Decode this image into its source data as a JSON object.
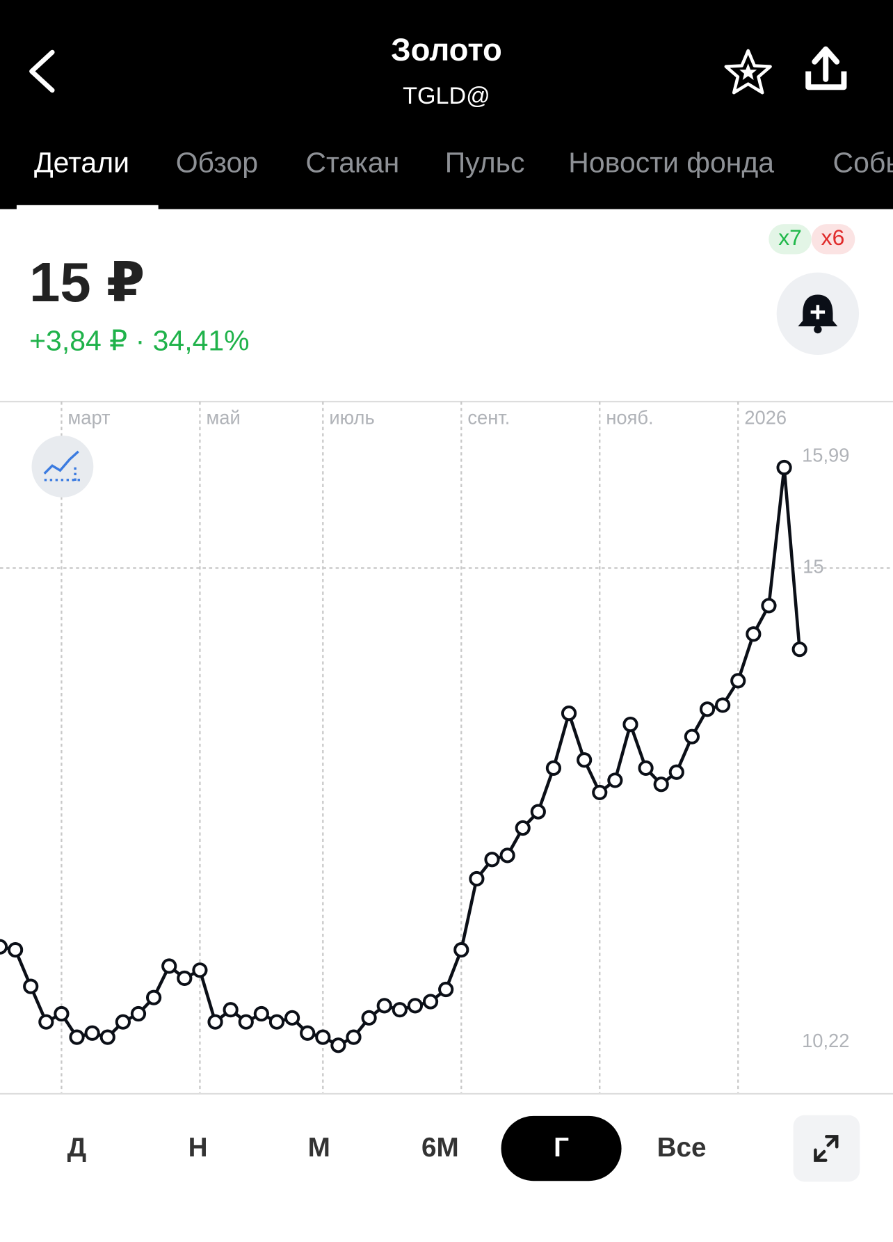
{
  "header": {
    "title": "Золото",
    "subtitle": "TGLD@"
  },
  "tabs": [
    "Детали",
    "Обзор",
    "Стакан",
    "Пульс",
    "Новости фонда",
    "События"
  ],
  "price": {
    "value": "15 ₽",
    "change": "+3,84 ₽ · 34,41%"
  },
  "badges": [
    "x7",
    "x6"
  ],
  "periods": [
    "Д",
    "Н",
    "М",
    "6М",
    "Г",
    "Все"
  ],
  "chart_data": {
    "type": "line",
    "categories": [
      null,
      null,
      null,
      null,
      "март",
      null,
      null,
      null,
      null,
      null,
      null,
      null,
      null,
      "май",
      null,
      null,
      null,
      null,
      null,
      null,
      null,
      "июль",
      null,
      null,
      null,
      null,
      null,
      null,
      null,
      null,
      "сент.",
      null,
      null,
      null,
      null,
      null,
      null,
      null,
      null,
      "нояб.",
      null,
      null,
      null,
      null,
      null,
      null,
      null,
      null,
      "2026",
      null,
      null,
      null,
      null
    ],
    "series": [
      {
        "color": "#0b0f17",
        "values": [
          11.27,
          11.24,
          10.88,
          10.53,
          10.61,
          10.38,
          10.42,
          10.38,
          10.53,
          10.61,
          10.77,
          11.08,
          10.96,
          11.04,
          10.53,
          10.65,
          10.53,
          10.61,
          10.53,
          10.57,
          10.42,
          10.38,
          10.3,
          10.38,
          10.57,
          10.69,
          10.65,
          10.69,
          10.73,
          10.85,
          11.24,
          11.94,
          12.13,
          12.17,
          12.44,
          12.6,
          13.03,
          13.57,
          13.11,
          12.79,
          12.91,
          13.46,
          13.03,
          12.87,
          12.99,
          13.34,
          13.61,
          13.65,
          13.89,
          14.35,
          14.63,
          15.99,
          14.2
        ]
      }
    ],
    "ylim": [
      9.83,
      16.64
    ],
    "yticks": [
      15
    ],
    "extremes": [
      {
        "value": 15.99,
        "label": "15,99"
      },
      {
        "value": 10.22,
        "label": "10,22"
      }
    ],
    "grid": true
  }
}
